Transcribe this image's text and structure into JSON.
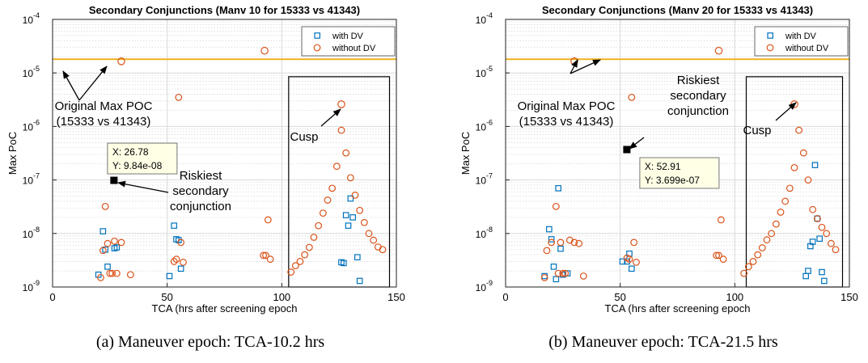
{
  "colors": {
    "with_dv": "#0072BD",
    "without_dv": "#D95319",
    "threshold": "#EDB120",
    "grid": "#d9d9d9"
  },
  "chart_data": [
    {
      "type": "scatter",
      "title": "Secondary Conjunctions (Manv 10 for 15333 vs 41343)",
      "xlabel": "TCA (hrs after screening epoch",
      "ylabel": "Max PoC",
      "xlim": [
        0,
        150
      ],
      "ylim": [
        1e-09,
        0.0001
      ],
      "yscale": "log",
      "x_ticks": [
        "0",
        "50",
        "100",
        "150"
      ],
      "y_ticks": [
        "10",
        "10",
        "10",
        "10",
        "10",
        "10"
      ],
      "y_tick_exponents": [
        "-9",
        "-8",
        "-7",
        "-6",
        "-5",
        "-4"
      ],
      "grid": true,
      "legend_position": "top-right",
      "threshold": 1.8e-05,
      "series": [
        {
          "name": "with DV",
          "marker": "square",
          "x": [
            20,
            22,
            23,
            24,
            27,
            28,
            51,
            53,
            54,
            55,
            56,
            126,
            127,
            128,
            129,
            130,
            131,
            133,
            134
          ],
          "y": [
            1.7e-09,
            1.1e-08,
            5e-09,
            2.4e-09,
            5.3e-09,
            5.5e-09,
            1.6e-09,
            1.4e-08,
            7.8e-09,
            7.5e-09,
            2.2e-09,
            2.9e-09,
            2.8e-09,
            2.2e-08,
            1.4e-08,
            4.5e-08,
            2e-08,
            3.6e-09,
            1.3e-09
          ]
        },
        {
          "name": "without DV",
          "marker": "circle",
          "x": [
            21,
            22,
            23,
            24,
            25,
            26,
            27,
            28,
            30,
            34,
            53,
            54,
            55,
            56,
            57,
            92,
            93,
            94,
            95,
            104,
            106,
            108,
            110,
            112,
            114,
            116,
            118,
            120,
            122,
            124,
            126,
            128,
            130,
            132,
            134,
            136,
            138,
            140,
            142,
            144
          ],
          "y": [
            1.5e-09,
            4.8e-09,
            3.2e-08,
            6.5e-09,
            1.8e-09,
            1.8e-09,
            7.2e-09,
            1.8e-09,
            6.8e-09,
            1.7e-09,
            3e-09,
            3.3e-09,
            3.5e-06,
            6.8e-09,
            2.9e-09,
            3.9e-09,
            3.9e-09,
            1.8e-08,
            3.3e-09,
            1.9e-09,
            2.5e-09,
            3e-09,
            4e-09,
            5.5e-09,
            8.5e-09,
            1.4e-08,
            2.4e-08,
            4.2e-08,
            7e-08,
            1.8e-07,
            8.5e-07,
            3.2e-07,
            1.1e-07,
            5.2e-08,
            2.7e-08,
            1.6e-08,
            1e-08,
            7.5e-09,
            5.6e-09,
            5e-09
          ]
        }
      ],
      "highlight_points": [
        {
          "x": 92.5,
          "y": 2.6e-05,
          "marker": "circle"
        },
        {
          "x": 30,
          "y": 1.65e-05,
          "marker": "circle"
        },
        {
          "x": 126,
          "y": 2.6e-06,
          "marker": "circle"
        }
      ],
      "callout": {
        "x": 26.78,
        "y": 9.84e-08,
        "lines": [
          "X: 26.78",
          "Y: 9.84e-08"
        ]
      },
      "annotations": [
        {
          "lines": [
            "Original Max POC",
            "(15333 vs 41343)"
          ]
        },
        {
          "lines": [
            "Riskiest",
            "secondary",
            "conjunction"
          ]
        },
        {
          "lines": [
            "Cusp"
          ]
        }
      ],
      "box": {
        "x": [
          103,
          147
        ],
        "y": [
          1e-09,
          8.5e-06
        ]
      }
    },
    {
      "type": "scatter",
      "title": "Secondary Conjunctions (Manv 20 for 15333 vs 41343)",
      "xlabel": "TCA (hrs after screening epoch",
      "ylabel": "Max PoC",
      "xlim": [
        0,
        150
      ],
      "ylim": [
        1e-09,
        0.0001
      ],
      "yscale": "log",
      "x_ticks": [
        "0",
        "50",
        "100",
        "150"
      ],
      "y_ticks": [
        "10",
        "10",
        "10",
        "10",
        "10",
        "10"
      ],
      "y_tick_exponents": [
        "-9",
        "-8",
        "-7",
        "-6",
        "-5",
        "-4"
      ],
      "grid": true,
      "legend_position": "top-right",
      "threshold": 1.8e-05,
      "series": [
        {
          "name": "with DV",
          "marker": "square",
          "x": [
            17,
            19,
            20,
            21,
            22,
            23,
            24,
            25,
            27,
            51,
            53,
            54,
            55,
            131,
            132,
            133,
            134,
            135,
            136,
            137,
            138,
            139
          ],
          "y": [
            1.6e-09,
            1.2e-08,
            7.8e-09,
            2.4e-09,
            1.4e-09,
            7e-08,
            5.2e-09,
            1.7e-09,
            1.8e-09,
            3e-09,
            3e-09,
            4.2e-09,
            2.2e-09,
            1.6e-09,
            2e-09,
            5.8e-09,
            7e-09,
            1.9e-07,
            1.9e-08,
            8e-09,
            1.9e-09,
            1.3e-09
          ]
        },
        {
          "name": "without DV",
          "marker": "circle",
          "x": [
            17,
            18,
            20,
            22,
            23,
            24,
            25,
            26,
            28,
            30,
            32,
            34,
            53,
            54,
            55,
            56,
            57,
            92,
            93,
            94,
            95,
            104,
            106,
            108,
            110,
            112,
            114,
            116,
            118,
            120,
            122,
            124,
            126,
            128,
            130,
            132,
            134,
            136,
            138,
            140,
            142,
            144
          ],
          "y": [
            1.5e-09,
            4.8e-09,
            6.8e-09,
            3.2e-08,
            1.8e-09,
            6.8e-09,
            1.8e-09,
            1.8e-09,
            7.5e-09,
            6.8e-09,
            6.5e-09,
            1.6e-09,
            3.5e-09,
            3.3e-09,
            3.5e-06,
            6.8e-09,
            2.9e-09,
            3.9e-09,
            3.9e-09,
            1.8e-08,
            3.3e-09,
            1.8e-09,
            2.4e-09,
            3e-09,
            4e-09,
            5.4e-09,
            7.6e-09,
            1e-08,
            1.5e-08,
            2.5e-08,
            4e-08,
            7e-08,
            1.7e-07,
            8.5e-07,
            3.2e-07,
            1e-07,
            2.8e-08,
            1.9e-08,
            1.3e-08,
            1e-08,
            6.5e-09,
            5e-09
          ]
        }
      ],
      "highlight_points": [
        {
          "x": 93,
          "y": 2.6e-05,
          "marker": "circle"
        },
        {
          "x": 30,
          "y": 1.65e-05,
          "marker": "circle"
        },
        {
          "x": 126,
          "y": 2.6e-06,
          "marker": "circle"
        }
      ],
      "callout": {
        "x": 52.91,
        "y": 3.699e-07,
        "lines": [
          "X: 52.91",
          "Y: 3.699e-07"
        ]
      },
      "annotations": [
        {
          "lines": [
            "Original Max POC",
            "(15333 vs 41343)"
          ]
        },
        {
          "lines": [
            "Riskiest",
            "secondary",
            "conjunction"
          ]
        },
        {
          "lines": [
            "Cusp"
          ]
        }
      ],
      "box": {
        "x": [
          105,
          147
        ],
        "y": [
          1e-09,
          8.5e-06
        ]
      }
    }
  ],
  "captions": [
    "(a)  Maneuver epoch: TCA-10.2 hrs",
    "(b)  Maneuver epoch: TCA-21.5 hrs"
  ]
}
